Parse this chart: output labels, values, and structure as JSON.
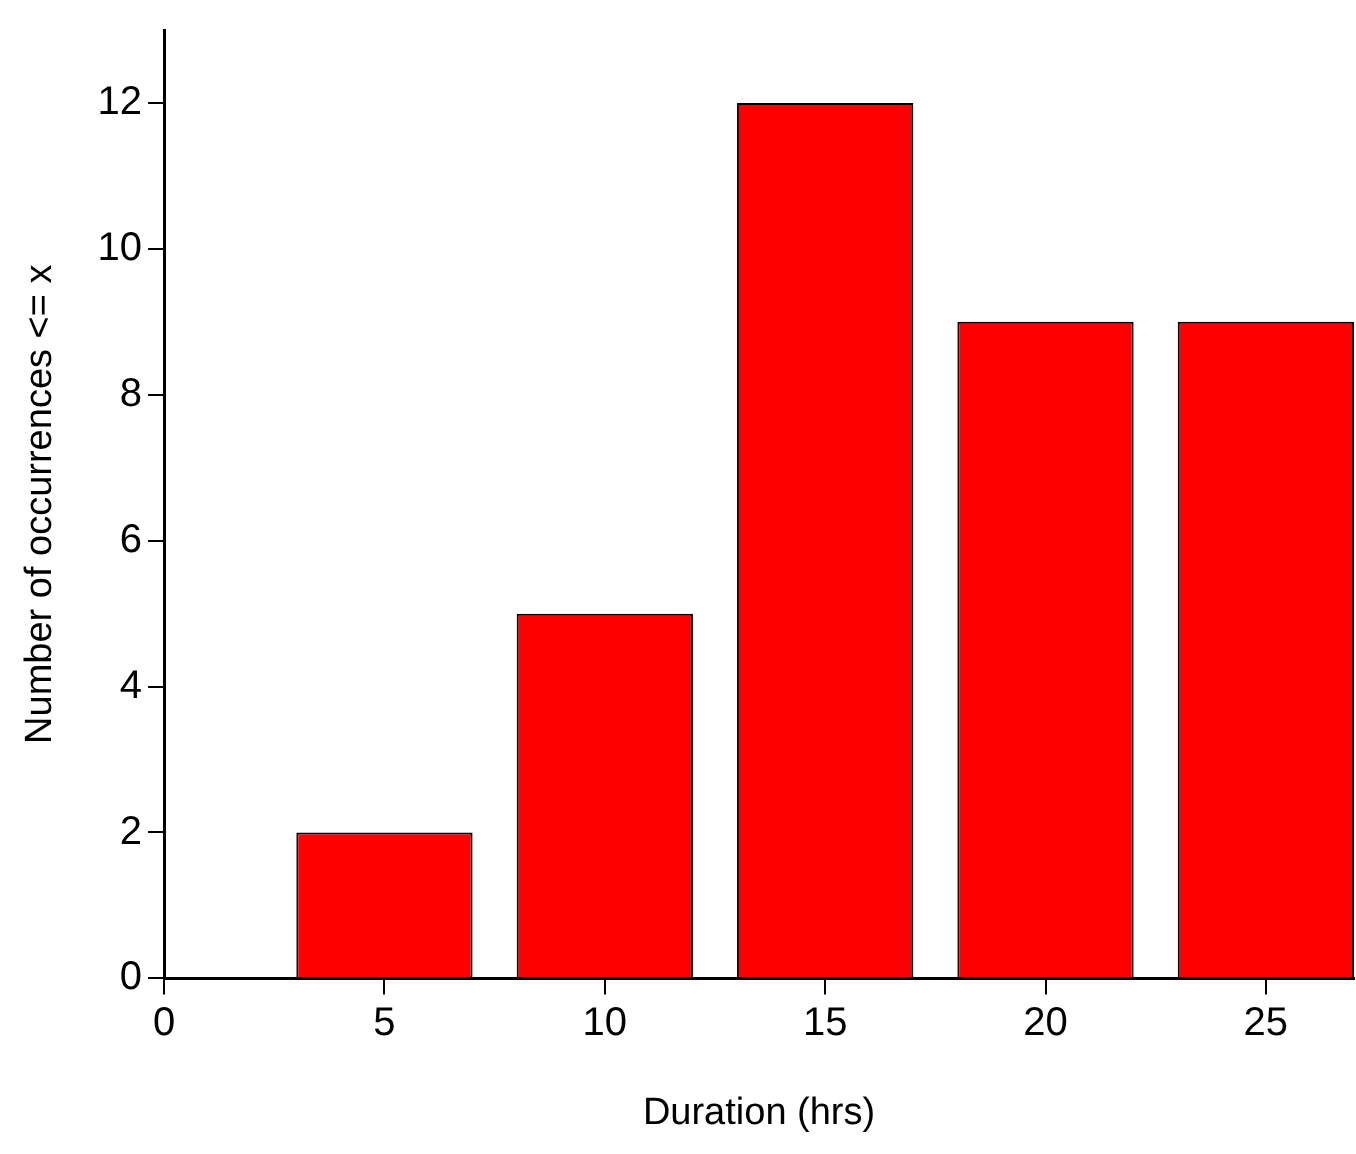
{
  "chart_data": {
    "type": "bar",
    "xlabel": "Duration (hrs)",
    "ylabel": "Number of occurrences <= x",
    "x": [
      5,
      10,
      15,
      20,
      25
    ],
    "series": [
      {
        "color": "#ff0000",
        "values": [
          2,
          5,
          12,
          9,
          9
        ]
      }
    ],
    "xlim": [
      0,
      27
    ],
    "xticks": [
      0,
      5,
      10,
      15,
      20,
      25
    ],
    "ylim": [
      0,
      13
    ],
    "yticks": [
      0,
      2,
      4,
      6,
      8,
      10,
      12
    ],
    "grid": false,
    "legend": false
  }
}
